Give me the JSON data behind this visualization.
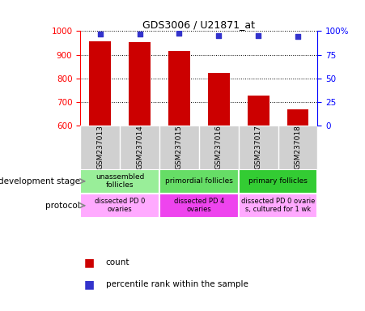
{
  "title": "GDS3006 / U21871_at",
  "samples": [
    "GSM237013",
    "GSM237014",
    "GSM237015",
    "GSM237016",
    "GSM237017",
    "GSM237018"
  ],
  "counts": [
    958,
    952,
    916,
    822,
    728,
    668
  ],
  "percentile_ranks": [
    97,
    97,
    98,
    95,
    95,
    94
  ],
  "ylim_left": [
    600,
    1000
  ],
  "ylim_right": [
    0,
    100
  ],
  "yticks_left": [
    600,
    700,
    800,
    900,
    1000
  ],
  "yticks_right": [
    0,
    25,
    50,
    75,
    100
  ],
  "bar_color": "#cc0000",
  "dot_color": "#3333cc",
  "sample_bg_color": "#d0d0d0",
  "development_stage_groups": [
    {
      "label": "unassembled\nfollicles",
      "start": 0,
      "end": 2,
      "color": "#99ee99"
    },
    {
      "label": "primordial follicles",
      "start": 2,
      "end": 4,
      "color": "#66dd66"
    },
    {
      "label": "primary follicles",
      "start": 4,
      "end": 6,
      "color": "#33cc33"
    }
  ],
  "protocol_groups": [
    {
      "label": "dissected PD 0\novaries",
      "start": 0,
      "end": 2,
      "color": "#ffaaff"
    },
    {
      "label": "dissected PD 4\novaries",
      "start": 2,
      "end": 4,
      "color": "#ee44ee"
    },
    {
      "label": "dissected PD 0 ovarie\ns, cultured for 1 wk",
      "start": 4,
      "end": 6,
      "color": "#ffaaff"
    }
  ],
  "left_label_dev": "development stage",
  "left_label_prot": "protocol",
  "legend_count_label": "count",
  "legend_pct_label": "percentile rank within the sample"
}
